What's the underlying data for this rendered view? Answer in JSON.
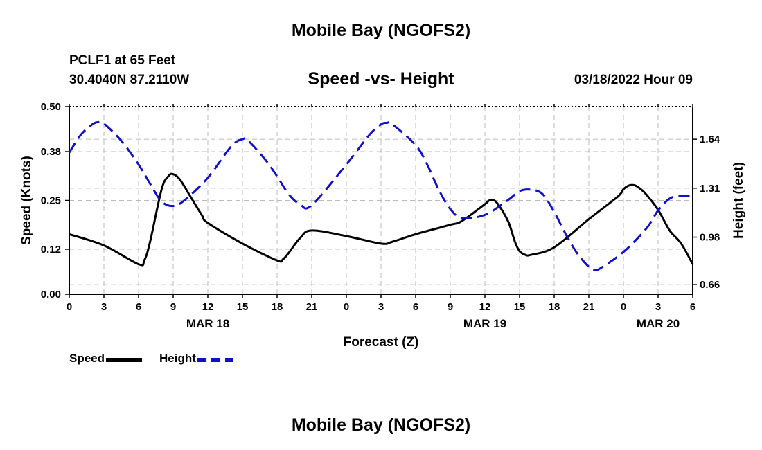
{
  "header": {
    "top_title": "Mobile Bay (NGOFS2)",
    "bottom_title": "Mobile Bay (NGOFS2)",
    "station": "PCLF1 at 65 Feet",
    "coords": "30.4040N  87.2110W",
    "date": "03/18/2022 Hour 09"
  },
  "colors": {
    "speed": "#000000",
    "height": "#1010c8",
    "grid": "#bbbbbb"
  },
  "chart_data": {
    "type": "line",
    "title": "Speed -vs- Height",
    "xlabel": "Forecast (Z)",
    "ylabel_left": "Speed (Knots)",
    "ylabel_right": "Height (feet)",
    "x_range_hours": [
      0,
      54
    ],
    "x_tick_labels": [
      "0",
      "3",
      "6",
      "9",
      "12",
      "15",
      "18",
      "21",
      "0",
      "3",
      "6",
      "9",
      "12",
      "15",
      "18",
      "21",
      "0",
      "3",
      "6"
    ],
    "date_labels": [
      {
        "label": "MAR 18",
        "hour": 12
      },
      {
        "label": "MAR 19",
        "hour": 36
      },
      {
        "label": "MAR 20",
        "hour": 51
      }
    ],
    "y_left_ticks": [
      "0.00",
      "0.12",
      "0.25",
      "0.38",
      "0.50"
    ],
    "y_left_range": [
      0,
      0.5
    ],
    "y_right_ticks": [
      "0.66",
      "0.98",
      "1.31",
      "1.64"
    ],
    "y_right_range": [
      0.595,
      1.86
    ],
    "grid": true,
    "series": [
      {
        "name": "Speed",
        "axis": "left",
        "style": "solid",
        "points": [
          [
            0,
            0.16
          ],
          [
            3,
            0.13
          ],
          [
            6,
            0.08
          ],
          [
            6.5,
            0.09
          ],
          [
            7,
            0.14
          ],
          [
            8,
            0.28
          ],
          [
            8.6,
            0.315
          ],
          [
            9,
            0.32
          ],
          [
            9.6,
            0.305
          ],
          [
            10.5,
            0.26
          ],
          [
            11.5,
            0.21
          ],
          [
            12,
            0.19
          ],
          [
            15,
            0.135
          ],
          [
            18,
            0.09
          ],
          [
            18.5,
            0.093
          ],
          [
            19,
            0.11
          ],
          [
            20,
            0.15
          ],
          [
            21,
            0.17
          ],
          [
            24,
            0.155
          ],
          [
            27,
            0.135
          ],
          [
            28,
            0.14
          ],
          [
            30,
            0.16
          ],
          [
            33,
            0.185
          ],
          [
            34,
            0.195
          ],
          [
            36,
            0.24
          ],
          [
            36.4,
            0.25
          ],
          [
            37,
            0.245
          ],
          [
            38,
            0.195
          ],
          [
            38.6,
            0.14
          ],
          [
            39,
            0.115
          ],
          [
            39.5,
            0.105
          ],
          [
            40,
            0.105
          ],
          [
            42,
            0.125
          ],
          [
            45,
            0.2
          ],
          [
            47.5,
            0.26
          ],
          [
            48,
            0.28
          ],
          [
            48.5,
            0.29
          ],
          [
            49,
            0.29
          ],
          [
            49.5,
            0.28
          ],
          [
            50,
            0.265
          ],
          [
            51,
            0.225
          ],
          [
            52,
            0.17
          ],
          [
            53,
            0.135
          ],
          [
            54,
            0.08
          ]
        ]
      },
      {
        "name": "Height",
        "axis": "right",
        "style": "dashed",
        "points": [
          [
            0,
            1.55
          ],
          [
            1,
            1.67
          ],
          [
            2,
            1.74
          ],
          [
            2.5,
            1.755
          ],
          [
            3,
            1.745
          ],
          [
            4.5,
            1.63
          ],
          [
            6,
            1.47
          ],
          [
            7,
            1.34
          ],
          [
            8,
            1.22
          ],
          [
            9,
            1.19
          ],
          [
            10,
            1.23
          ],
          [
            12,
            1.38
          ],
          [
            14,
            1.59
          ],
          [
            15,
            1.64
          ],
          [
            15.5,
            1.63
          ],
          [
            17,
            1.5
          ],
          [
            18,
            1.39
          ],
          [
            19,
            1.27
          ],
          [
            20,
            1.2
          ],
          [
            21,
            1.195
          ],
          [
            24,
            1.47
          ],
          [
            26,
            1.67
          ],
          [
            27,
            1.74
          ],
          [
            27.5,
            1.75
          ],
          [
            28,
            1.74
          ],
          [
            30,
            1.6
          ],
          [
            31,
            1.47
          ],
          [
            32,
            1.3
          ],
          [
            33,
            1.17
          ],
          [
            34,
            1.11
          ],
          [
            36,
            1.13
          ],
          [
            38,
            1.23
          ],
          [
            39,
            1.29
          ],
          [
            40,
            1.3
          ],
          [
            41,
            1.27
          ],
          [
            42,
            1.15
          ],
          [
            43,
            1.0
          ],
          [
            44,
            0.87
          ],
          [
            45,
            0.78
          ],
          [
            45.5,
            0.76
          ],
          [
            46,
            0.77
          ],
          [
            48,
            0.88
          ],
          [
            50,
            1.04
          ],
          [
            51,
            1.16
          ],
          [
            52,
            1.24
          ],
          [
            53,
            1.26
          ],
          [
            54,
            1.25
          ]
        ]
      }
    ]
  },
  "legend": {
    "speed_label": "Speed",
    "height_label": "Height"
  }
}
